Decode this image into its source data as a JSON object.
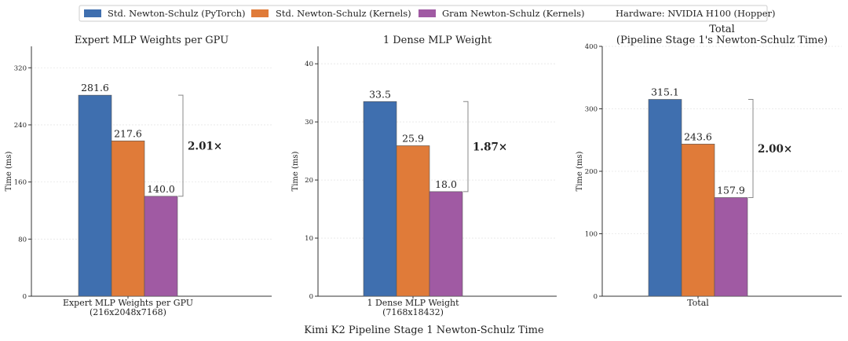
{
  "legend": {
    "items": [
      {
        "label": "Std. Newton-Schulz (PyTorch)",
        "color": "#3f6faf"
      },
      {
        "label": "Std. Newton-Schulz (Kernels)",
        "color": "#e07b39"
      },
      {
        "label": "Gram Newton-Schulz (Kernels)",
        "color": "#a05aa3"
      }
    ],
    "hardware": "Hardware: NVIDIA H100 (Hopper)"
  },
  "footer_title": "Kimi K2 Pipeline Stage 1 Newton-Schulz Time",
  "chart_data": [
    {
      "type": "bar",
      "title": [
        "Expert MLP Weights per GPU"
      ],
      "ylabel": "Time (ms)",
      "ylim": [
        0,
        350
      ],
      "yticks": [
        0,
        80,
        160,
        240,
        320
      ],
      "categories": [
        [
          "Expert MLP Weights per GPU",
          "(216x2048x7168)"
        ]
      ],
      "series": [
        {
          "name": "Std. Newton-Schulz (PyTorch)",
          "values": [
            281.6
          ],
          "color": "#3f6faf"
        },
        {
          "name": "Std. Newton-Schulz (Kernels)",
          "values": [
            217.6
          ],
          "color": "#e07b39"
        },
        {
          "name": "Gram Newton-Schulz (Kernels)",
          "values": [
            140.0
          ],
          "color": "#a05aa3"
        }
      ],
      "data_labels": [
        "281.6",
        "217.6",
        "140.0"
      ],
      "speedup": "2.01×",
      "grid": "horizontal"
    },
    {
      "type": "bar",
      "title": [
        "1 Dense MLP Weight"
      ],
      "ylabel": "Time (ms)",
      "ylim": [
        0,
        43
      ],
      "yticks": [
        0,
        10,
        20,
        30,
        40
      ],
      "categories": [
        [
          "1 Dense MLP Weight",
          "(7168x18432)"
        ]
      ],
      "series": [
        {
          "name": "Std. Newton-Schulz (PyTorch)",
          "values": [
            33.5
          ],
          "color": "#3f6faf"
        },
        {
          "name": "Std. Newton-Schulz (Kernels)",
          "values": [
            25.9
          ],
          "color": "#e07b39"
        },
        {
          "name": "Gram Newton-Schulz (Kernels)",
          "values": [
            18.0
          ],
          "color": "#a05aa3"
        }
      ],
      "data_labels": [
        "33.5",
        "25.9",
        "18.0"
      ],
      "speedup": "1.87×",
      "grid": "horizontal"
    },
    {
      "type": "bar",
      "title": [
        "Total",
        "(Pipeline Stage 1's Newton-Schulz Time)"
      ],
      "ylabel": "Time (ms)",
      "ylim": [
        0,
        400
      ],
      "yticks": [
        0,
        100,
        200,
        300,
        400
      ],
      "categories": [
        [
          "Total"
        ]
      ],
      "series": [
        {
          "name": "Std. Newton-Schulz (PyTorch)",
          "values": [
            315.1
          ],
          "color": "#3f6faf"
        },
        {
          "name": "Std. Newton-Schulz (Kernels)",
          "values": [
            243.6
          ],
          "color": "#e07b39"
        },
        {
          "name": "Gram Newton-Schulz (Kernels)",
          "values": [
            157.9
          ],
          "color": "#a05aa3"
        }
      ],
      "data_labels": [
        "315.1",
        "243.6",
        "157.9"
      ],
      "speedup": "2.00×",
      "grid": "horizontal"
    }
  ]
}
